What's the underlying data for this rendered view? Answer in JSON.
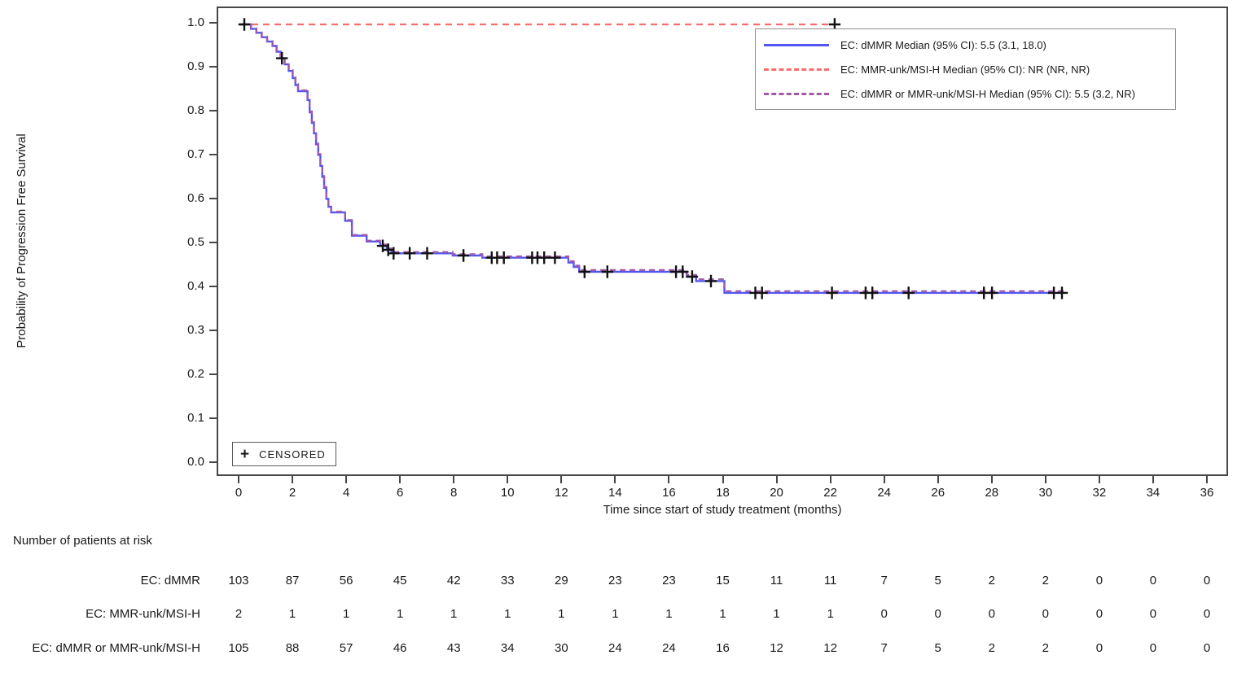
{
  "colors": {
    "dmmr": "#5456f0",
    "unk": "#f76e6e",
    "combined": "#a159a8",
    "axis": "#474747",
    "censor": "#111111",
    "text": "#1a1a1a"
  },
  "chart_data": {
    "type": "line",
    "subtype": "kaplan-meier-step",
    "title": "",
    "xlabel": "Time since start of study treatment (months)",
    "ylabel": "Probability of Progression Free Survival",
    "xlim": [
      0,
      36
    ],
    "ylim": [
      0.0,
      1.0
    ],
    "xticks": [
      0,
      2,
      4,
      6,
      8,
      10,
      12,
      14,
      16,
      18,
      20,
      22,
      24,
      26,
      28,
      30,
      32,
      34,
      36
    ],
    "yticks": [
      0.0,
      0.1,
      0.2,
      0.3,
      0.4,
      0.5,
      0.6,
      0.7,
      0.8,
      0.9,
      1.0
    ],
    "grid": false,
    "legend_position": "top-right",
    "censored_label": "CENSORED",
    "series": [
      {
        "name": "EC: dMMR",
        "legend_label": "EC: dMMR Median (95% CI): 5.5 (3.1, 18.0)",
        "color_key": "dmmr",
        "style": "solid",
        "steps": [
          [
            0,
            1.0
          ],
          [
            0.4,
            0.99
          ],
          [
            0.6,
            0.981
          ],
          [
            0.8,
            0.971
          ],
          [
            1.0,
            0.961
          ],
          [
            1.2,
            0.951
          ],
          [
            1.35,
            0.938
          ],
          [
            1.5,
            0.923
          ],
          [
            1.65,
            0.909
          ],
          [
            1.8,
            0.894
          ],
          [
            1.95,
            0.878
          ],
          [
            2.05,
            0.862
          ],
          [
            2.15,
            0.848
          ],
          [
            2.5,
            0.828
          ],
          [
            2.58,
            0.8
          ],
          [
            2.66,
            0.776
          ],
          [
            2.74,
            0.752
          ],
          [
            2.82,
            0.727
          ],
          [
            2.9,
            0.703
          ],
          [
            2.98,
            0.678
          ],
          [
            3.05,
            0.653
          ],
          [
            3.12,
            0.628
          ],
          [
            3.2,
            0.603
          ],
          [
            3.28,
            0.585
          ],
          [
            3.38,
            0.572
          ],
          [
            3.9,
            0.553
          ],
          [
            4.15,
            0.519
          ],
          [
            4.7,
            0.506
          ],
          [
            5.2,
            0.496
          ],
          [
            5.45,
            0.487
          ],
          [
            5.62,
            0.479
          ],
          [
            7.9,
            0.474
          ],
          [
            9.0,
            0.469
          ],
          [
            12.2,
            0.458
          ],
          [
            12.4,
            0.448
          ],
          [
            12.6,
            0.437
          ],
          [
            16.6,
            0.426
          ],
          [
            16.95,
            0.416
          ],
          [
            18.0,
            0.389
          ],
          [
            30.6,
            0.389
          ]
        ],
        "censors": [
          [
            0.15,
            1.0
          ],
          [
            1.55,
            0.923
          ],
          [
            5.3,
            0.496
          ],
          [
            5.5,
            0.487
          ],
          [
            5.7,
            0.479
          ],
          [
            6.3,
            0.479
          ],
          [
            6.95,
            0.479
          ],
          [
            8.3,
            0.474
          ],
          [
            9.35,
            0.469
          ],
          [
            9.55,
            0.469
          ],
          [
            9.8,
            0.469
          ],
          [
            10.85,
            0.469
          ],
          [
            11.05,
            0.469
          ],
          [
            11.3,
            0.469
          ],
          [
            11.7,
            0.469
          ],
          [
            12.8,
            0.437
          ],
          [
            13.65,
            0.437
          ],
          [
            16.2,
            0.437
          ],
          [
            16.45,
            0.437
          ],
          [
            16.8,
            0.426
          ],
          [
            17.5,
            0.416
          ],
          [
            19.15,
            0.389
          ],
          [
            19.4,
            0.389
          ],
          [
            22.0,
            0.389
          ],
          [
            23.25,
            0.389
          ],
          [
            23.5,
            0.389
          ],
          [
            24.85,
            0.389
          ],
          [
            27.65,
            0.389
          ],
          [
            27.95,
            0.389
          ],
          [
            30.25,
            0.389
          ],
          [
            30.55,
            0.389
          ]
        ]
      },
      {
        "name": "EC: MMR-unk/MSI-H",
        "legend_label": "EC: MMR-unk/MSI-H Median (95% CI): NR (NR, NR)",
        "color_key": "unk",
        "style": "dashed",
        "steps": [
          [
            0,
            1.0
          ],
          [
            22.1,
            1.0
          ]
        ],
        "censors": [
          [
            22.1,
            1.0
          ]
        ]
      },
      {
        "name": "EC: dMMR or MMR-unk/MSI-H",
        "legend_label": "EC: dMMR or MMR-unk/MSI-H Median (95% CI): 5.5 (3.2, NR)",
        "color_key": "combined",
        "style": "dashed",
        "steps": [
          [
            0,
            1.0
          ],
          [
            0.4,
            0.991
          ],
          [
            0.6,
            0.982
          ],
          [
            0.8,
            0.972
          ],
          [
            1.0,
            0.962
          ],
          [
            1.2,
            0.952
          ],
          [
            1.35,
            0.94
          ],
          [
            1.5,
            0.925
          ],
          [
            1.65,
            0.911
          ],
          [
            1.8,
            0.896
          ],
          [
            1.95,
            0.88
          ],
          [
            2.05,
            0.864
          ],
          [
            2.15,
            0.85
          ],
          [
            2.5,
            0.83
          ],
          [
            2.58,
            0.802
          ],
          [
            2.66,
            0.778
          ],
          [
            2.74,
            0.754
          ],
          [
            2.82,
            0.729
          ],
          [
            2.9,
            0.705
          ],
          [
            2.98,
            0.68
          ],
          [
            3.05,
            0.655
          ],
          [
            3.12,
            0.63
          ],
          [
            3.2,
            0.605
          ],
          [
            3.28,
            0.587
          ],
          [
            3.38,
            0.574
          ],
          [
            3.9,
            0.555
          ],
          [
            4.15,
            0.521
          ],
          [
            4.7,
            0.508
          ],
          [
            5.2,
            0.499
          ],
          [
            5.45,
            0.49
          ],
          [
            5.62,
            0.482
          ],
          [
            7.9,
            0.477
          ],
          [
            9.0,
            0.472
          ],
          [
            12.2,
            0.461
          ],
          [
            12.4,
            0.451
          ],
          [
            12.6,
            0.441
          ],
          [
            16.6,
            0.43
          ],
          [
            16.95,
            0.42
          ],
          [
            18.0,
            0.393
          ],
          [
            30.65,
            0.393
          ]
        ],
        "censors": []
      }
    ]
  },
  "risk_table": {
    "header": "Number of patients at risk",
    "times": [
      0,
      2,
      4,
      6,
      8,
      10,
      12,
      14,
      16,
      18,
      20,
      22,
      24,
      26,
      28,
      30,
      32,
      34,
      36
    ],
    "rows": [
      {
        "label": "EC: dMMR",
        "values": [
          103,
          87,
          56,
          45,
          42,
          33,
          29,
          23,
          23,
          15,
          11,
          11,
          7,
          5,
          2,
          2,
          0,
          0,
          0
        ]
      },
      {
        "label": "EC: MMR-unk/MSI-H",
        "values": [
          2,
          1,
          1,
          1,
          1,
          1,
          1,
          1,
          1,
          1,
          1,
          1,
          0,
          0,
          0,
          0,
          0,
          0,
          0
        ]
      },
      {
        "label": "EC: dMMR or MMR-unk/MSI-H",
        "values": [
          105,
          88,
          57,
          46,
          43,
          34,
          30,
          24,
          24,
          16,
          12,
          12,
          7,
          5,
          2,
          2,
          0,
          0,
          0
        ]
      }
    ]
  }
}
